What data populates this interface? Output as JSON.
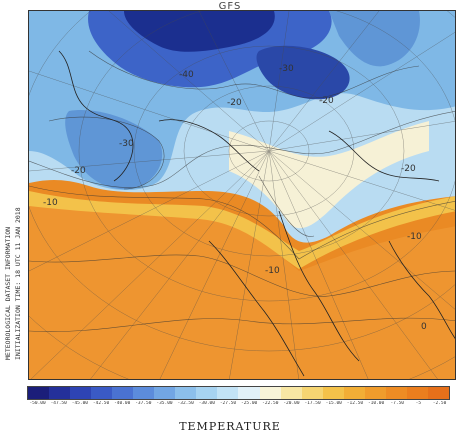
{
  "header": {
    "title": "GFS"
  },
  "side_label": {
    "line1": "METEOROLOGICAL DATASET INFORMATION",
    "line2": "INITIALIZATION TIME: 18 UTC 11 JAN 2018"
  },
  "map": {
    "contour_labels": [
      "-40",
      "-30",
      "-20",
      "-20",
      "-20",
      "-30",
      "-10",
      "-10",
      "-10",
      "0",
      "-20"
    ],
    "colors": {
      "very_cold": "#1b2f8f",
      "cold": "#3d64c8",
      "cool": "#7fb8e6",
      "cold_light": "#b9dcf2",
      "neutral": "#f6f1d6",
      "warm": "#f3c24a",
      "warmer": "#ef9a2a",
      "hot": "#e9801f"
    }
  },
  "colorbar": {
    "colors": [
      "#1b1e7a",
      "#24309a",
      "#2e44b4",
      "#3a5ac6",
      "#4a72d2",
      "#5c8cdc",
      "#72a6e4",
      "#8cbfeb",
      "#a7d3f1",
      "#c3e3f6",
      "#e2f1f8",
      "#f8f4d8",
      "#f8e7a4",
      "#f6d572",
      "#f4c24a",
      "#f2ae36",
      "#f09c2c",
      "#ee8c24",
      "#eb7e1e",
      "#e6701a"
    ],
    "tick_labels": [
      "-50.00",
      "-47.50",
      "-45.00",
      "-42.50",
      "-40.00",
      "-37.50",
      "-35.00",
      "-32.50",
      "-30.00",
      "-27.50",
      "-25.00",
      "-22.50",
      "-20.00",
      "-17.50",
      "-15.00",
      "-12.50",
      "-10.00",
      "-7.50",
      "-5",
      "-2.50"
    ]
  },
  "footer": {
    "variable_name": "TEMPERATURE"
  }
}
